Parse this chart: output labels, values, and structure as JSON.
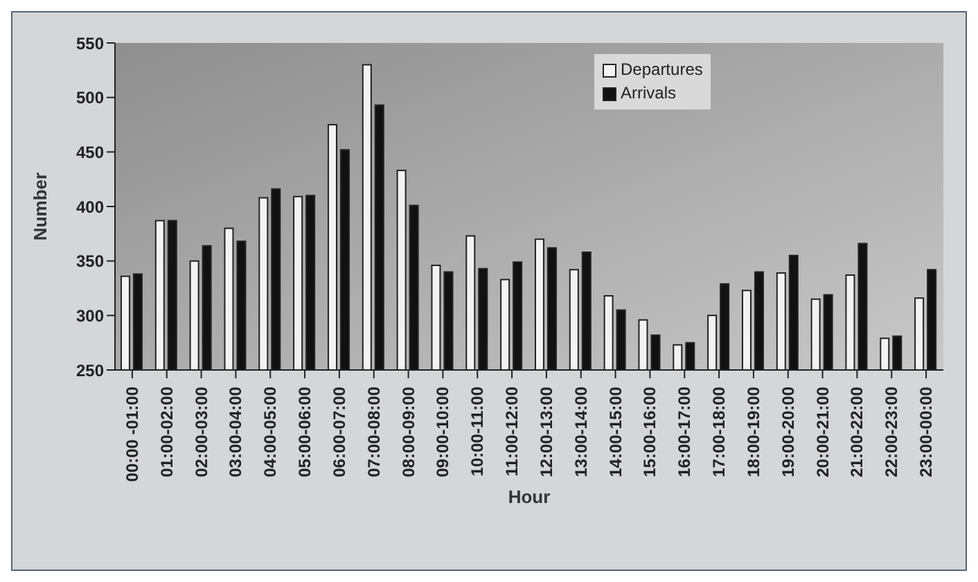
{
  "chart_data": {
    "type": "bar",
    "xlabel": "Hour",
    "ylabel": "Number",
    "categories": [
      "00:00 -01:00",
      "01:00-02:00",
      "02:00-03:00",
      "03:00-04:00",
      "04:00-05:00",
      "05:00-06:00",
      "06:00-07:00",
      "07:00-08:00",
      "08:00-09:00",
      "09:00-10:00",
      "10:00-11:00",
      "11:00-12:00",
      "12:00-13:00",
      "13:00-14:00",
      "14:00-15:00",
      "15:00-16:00",
      "16:00-17:00",
      "17:00-18:00",
      "18:00-19:00",
      "19:00-20:00",
      "20:00-21:00",
      "21:00-22:00",
      "22:00-23:00",
      "23:00-00:00"
    ],
    "series": [
      {
        "name": "Departures",
        "color": "#f2f2f2",
        "values": [
          336,
          387,
          350,
          380,
          408,
          409,
          475,
          530,
          433,
          346,
          373,
          333,
          370,
          342,
          318,
          296,
          273,
          300,
          323,
          339,
          315,
          337,
          279,
          316
        ]
      },
      {
        "name": "Arrivals",
        "color": "#111111",
        "values": [
          338,
          387,
          364,
          368,
          416,
          410,
          452,
          493,
          401,
          340,
          343,
          349,
          362,
          358,
          305,
          282,
          275,
          329,
          340,
          355,
          319,
          366,
          281,
          342
        ]
      }
    ],
    "ylim": [
      250,
      550
    ],
    "yticks": [
      250,
      300,
      350,
      400,
      450,
      500,
      550
    ],
    "grid": false,
    "legend": "top"
  }
}
